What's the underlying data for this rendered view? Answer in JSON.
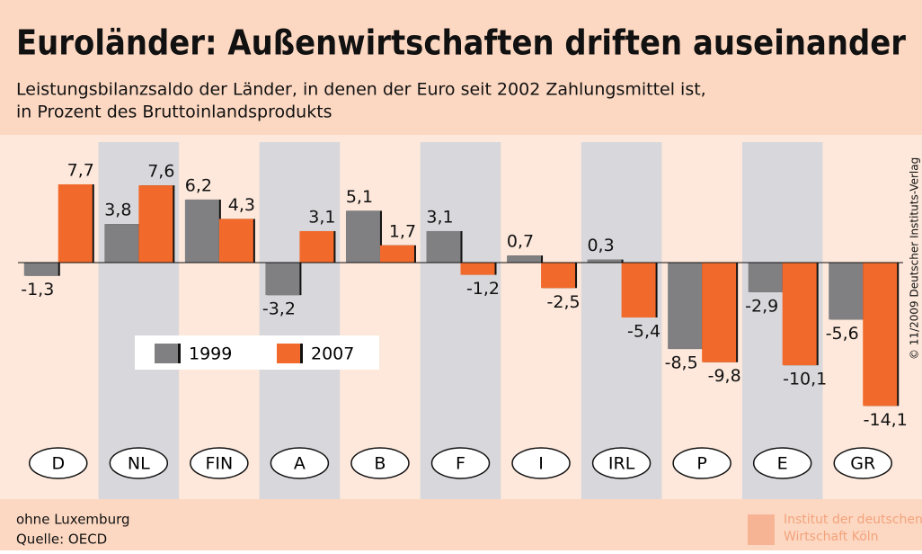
{
  "chart_data": {
    "type": "bar",
    "title": "Euroländer: Außenwirtschaften driften auseinander",
    "subtitle": [
      "Leistungsbilanzsaldo der Länder, in denen der Euro seit 2002 Zahlungsmittel ist,",
      "in Prozent des Bruttoinlandsprodukts"
    ],
    "categories": [
      "D",
      "NL",
      "FIN",
      "A",
      "B",
      "F",
      "I",
      "IRL",
      "P",
      "E",
      "GR"
    ],
    "series": [
      {
        "name": "1999",
        "color": "#808083",
        "values": [
          -1.3,
          3.8,
          6.2,
          -3.2,
          5.1,
          3.1,
          0.7,
          0.3,
          -8.5,
          -2.9,
          -5.6
        ],
        "value_labels": [
          "-1,3",
          "3,8",
          "6,2",
          "-3,2",
          "5,1",
          "3,1",
          "0,7",
          "0,3",
          "-8,5",
          "-2,9",
          "-5,6"
        ]
      },
      {
        "name": "2007",
        "color": "#f26a2b",
        "values": [
          7.7,
          7.6,
          4.3,
          3.1,
          1.7,
          -1.2,
          -2.5,
          -5.4,
          -9.8,
          -10.1,
          -14.1
        ],
        "value_labels": [
          "7,7",
          "7,6",
          "4,3",
          "3,1",
          "1,7",
          "-1,2",
          "-2,5",
          "-5,4",
          "-9,8",
          "-10,1",
          "-14,1"
        ]
      }
    ],
    "notes": [
      "ohne Luxemburg",
      "Quelle: OECD"
    ],
    "copyright": "© 11/2009 Deutscher Instituts-Verlag",
    "logo": [
      "Institut der deutschen",
      "Wirtschaft Köln"
    ]
  }
}
